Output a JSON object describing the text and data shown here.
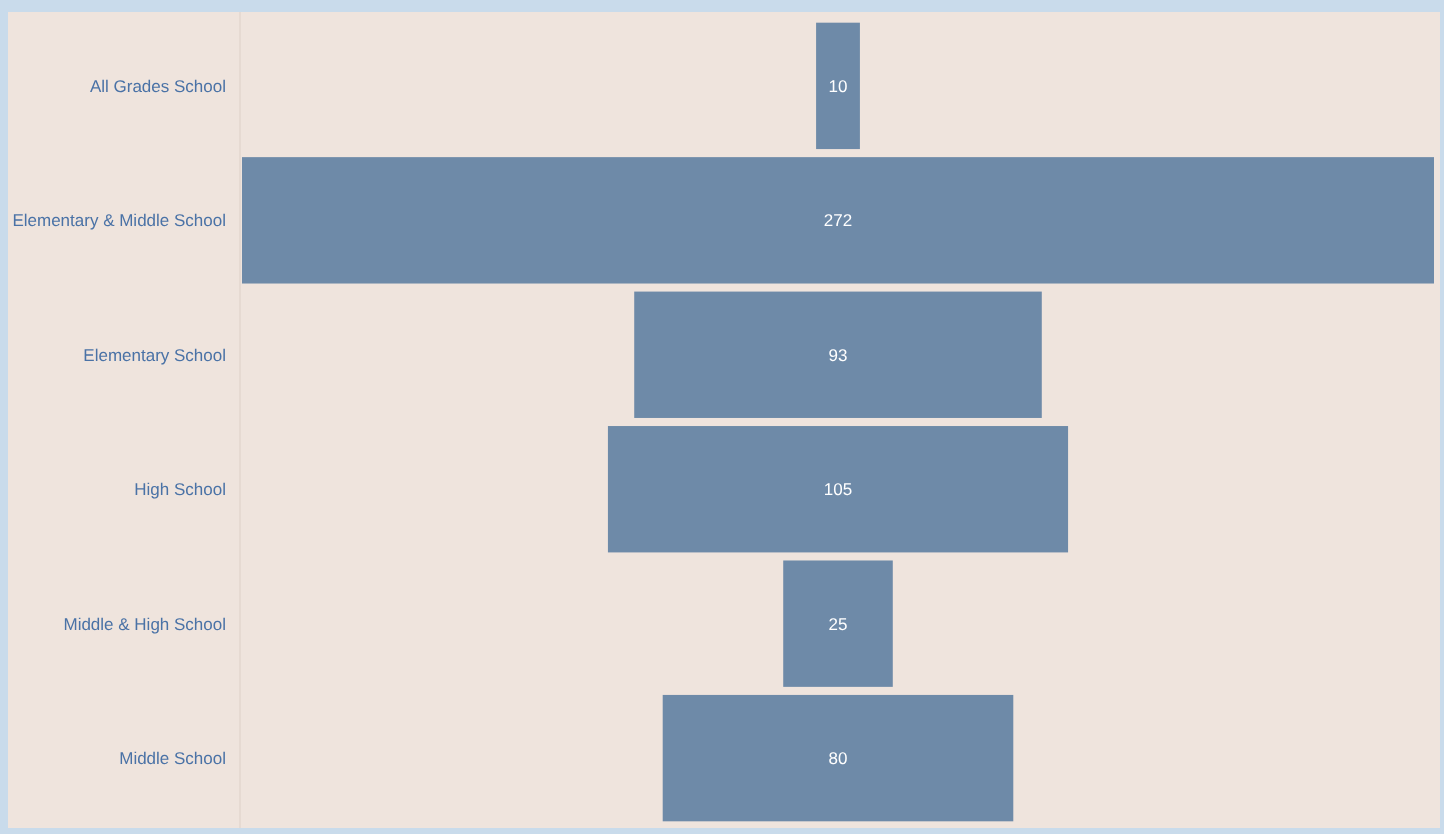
{
  "chart_data": {
    "type": "other",
    "categories": [
      "All Grades School",
      "Elementary & Middle School",
      "Elementary School",
      "High School",
      "Middle & High School",
      "Middle School"
    ],
    "values": [
      10,
      272,
      93,
      105,
      25,
      80
    ],
    "color": "#6e8aa8",
    "data_labels": true
  }
}
